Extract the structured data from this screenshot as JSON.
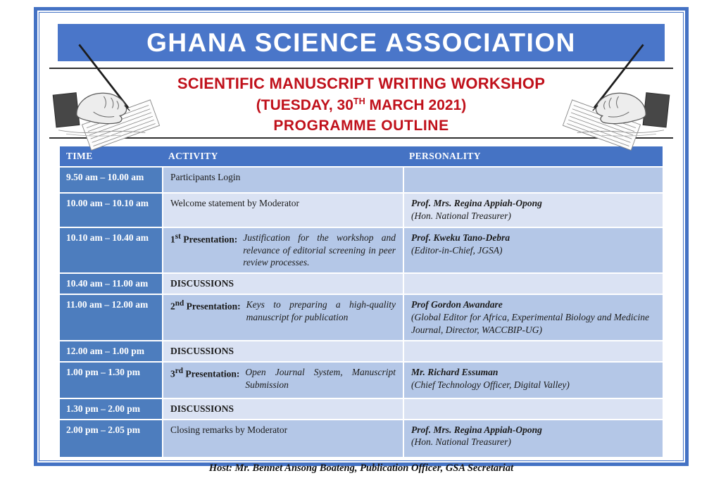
{
  "banner": {
    "title": "GHANA SCIENCE ASSOCIATION"
  },
  "masthead": {
    "line1": "SCIENTIFIC MANUSCRIPT WRITING WORKSHOP",
    "date_prefix": "(TUESDAY, 30",
    "date_sup": "TH",
    "date_suffix": " MARCH 2021)",
    "line3": "PROGRAMME OUTLINE",
    "left_illustration": "hand-writing-engraving",
    "right_illustration": "hand-writing-engraving-mirrored"
  },
  "colors": {
    "frame_blue": "#4472c4",
    "banner_blue": "#4a76c9",
    "header_blue": "#4573c4",
    "time_blue": "#4d7dbe",
    "row_medium": "#b4c7e7",
    "row_light": "#dae2f3",
    "accent_red": "#c0111b"
  },
  "table": {
    "headers": [
      "TIME",
      "ACTIVITY",
      "PERSONALITY"
    ],
    "rows": [
      {
        "shade": "medium",
        "time": "9.50 am – 10.00 am",
        "activity": {
          "type": "plain",
          "text": "Participants Login"
        },
        "personality": null
      },
      {
        "shade": "light",
        "time": "10.00 am – 10.10 am",
        "activity": {
          "type": "plain",
          "text": "Welcome statement by Moderator"
        },
        "personality": {
          "name": "Prof. Mrs. Regina Appiah-Opong",
          "role": "(Hon. National Treasurer)"
        }
      },
      {
        "shade": "medium",
        "time": "10.10 am – 10.40 am",
        "activity": {
          "type": "presentation",
          "num": "1",
          "sup": "st",
          "label": "Presentation:",
          "text": "Justification for the workshop and relevance of editorial screening in peer review processes."
        },
        "personality": {
          "name": "Prof. Kweku Tano-Debra",
          "role": "(Editor-in-Chief, JGSA)"
        }
      },
      {
        "shade": "light",
        "time": "10.40 am – 11.00 am",
        "activity": {
          "type": "bold",
          "text": "DISCUSSIONS"
        },
        "personality": null
      },
      {
        "shade": "medium",
        "time": "11.00 am – 12.00 am",
        "activity": {
          "type": "presentation",
          "num": "2",
          "sup": "nd",
          "label": "Presentation:",
          "text": "Keys to preparing a high-quality manuscript for publication"
        },
        "personality": {
          "name": "Prof Gordon Awandare",
          "role": "(Global Editor for Africa, Experimental Biology and Medicine Journal, Director, WACCBIP-UG)"
        }
      },
      {
        "shade": "light",
        "time": "12.00 am – 1.00 pm",
        "activity": {
          "type": "bold",
          "text": "DISCUSSIONS"
        },
        "personality": null
      },
      {
        "shade": "medium",
        "time": "1.00 pm – 1.30 pm",
        "activity": {
          "type": "presentation",
          "num": "3",
          "sup": "rd",
          "label": "Presentation:",
          "text": "Open Journal System, Manuscript Submission"
        },
        "personality": {
          "name": "Mr. Richard Essuman",
          "role": "(Chief Technology Officer, Digital Valley)"
        }
      },
      {
        "shade": "light",
        "time": "1.30 pm – 2.00 pm",
        "activity": {
          "type": "bold",
          "text": "DISCUSSIONS"
        },
        "personality": null
      },
      {
        "shade": "medium",
        "time": "2.00 pm – 2.05 pm",
        "activity": {
          "type": "plain",
          "text": "Closing remarks by Moderator"
        },
        "personality": {
          "name": "Prof. Mrs. Regina Appiah-Opong",
          "role": "(Hon. National Treasurer)"
        }
      }
    ]
  },
  "footer": {
    "host": "Host: Mr. Bennet Ansong Boateng, Publication Officer, GSA Secretariat"
  }
}
